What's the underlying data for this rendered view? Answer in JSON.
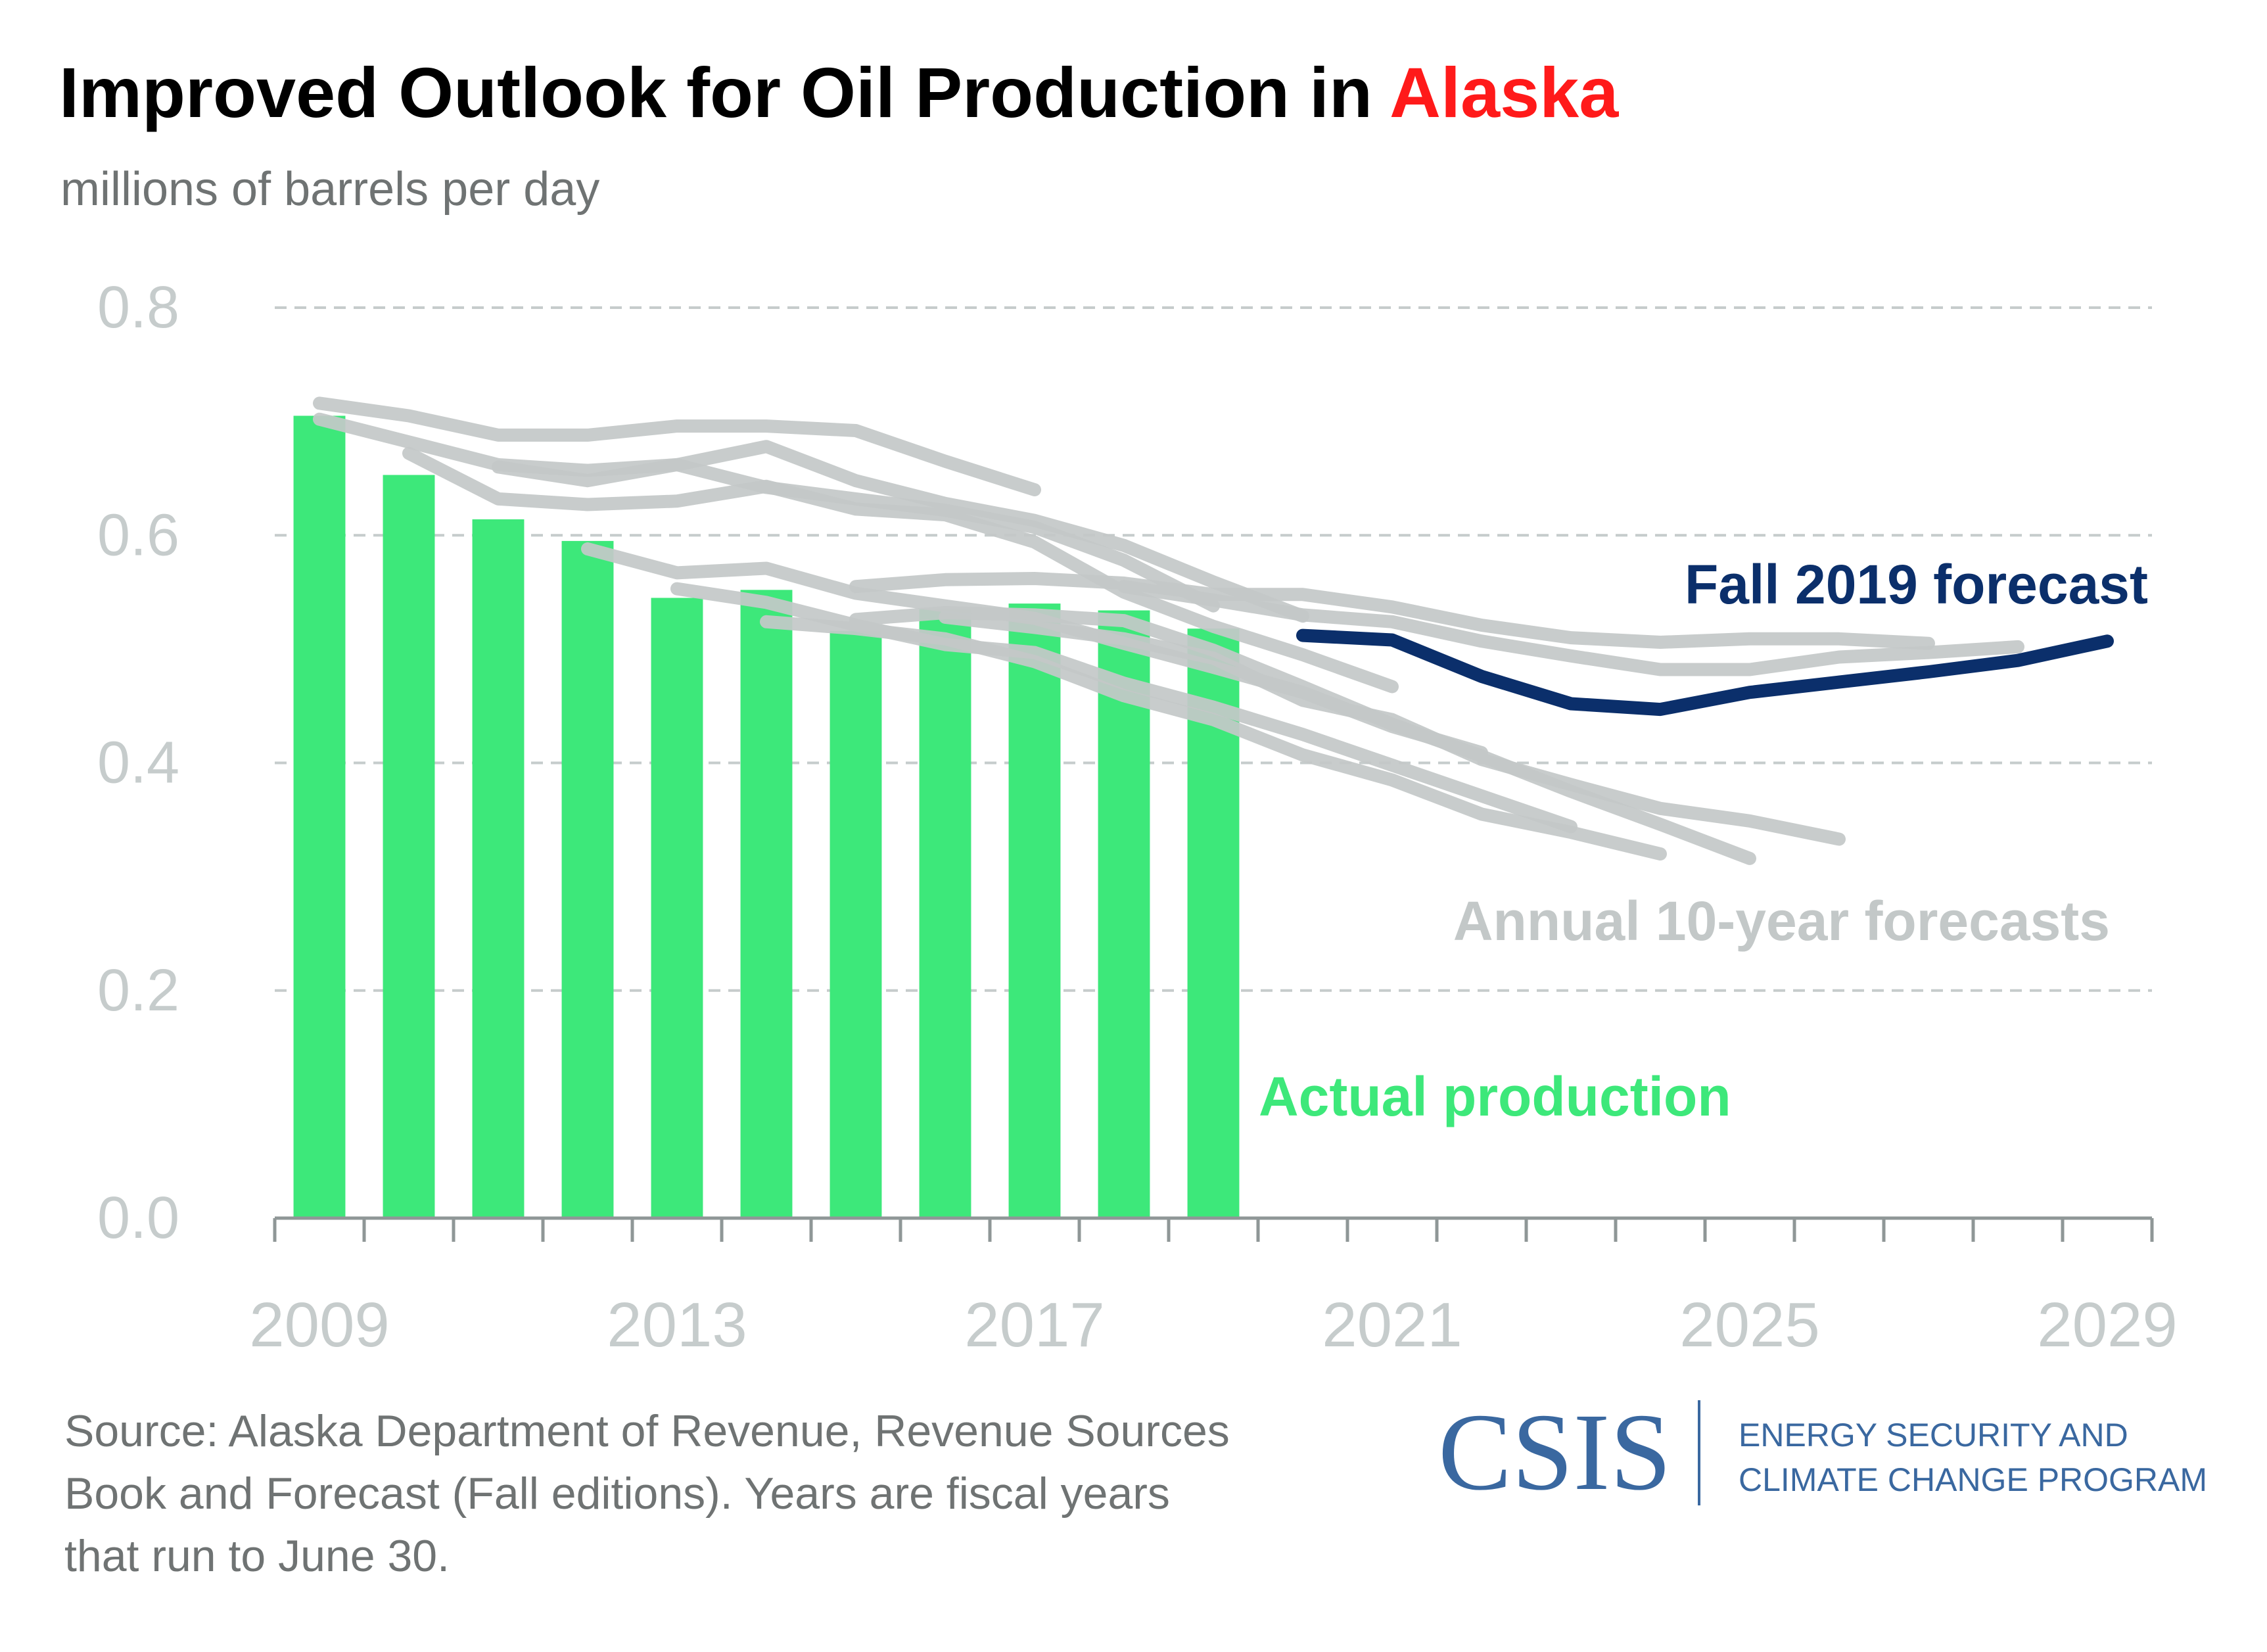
{
  "title": {
    "main": "Improved Outlook for Oil Production in ",
    "highlight": "Alaska"
  },
  "subtitle": "millions of barrels per day",
  "source": {
    "lines": [
      "Source: Alaska Department of Revenue, Revenue Sources",
      "Book and Forecast (Fall editions). Years are fiscal years",
      "that run to June 30."
    ]
  },
  "logo": {
    "name": "CSIS",
    "program_line1": "ENERGY SECURITY AND",
    "program_line2": "CLIMATE CHANGE PROGRAM"
  },
  "colors": {
    "bars": "#3de87a",
    "forecasts": "#c3c8c8",
    "fall_2019": "#0b2f6b",
    "highlight": "#ff1a1a",
    "axis_text": "#c6cccc",
    "axis_line": "#8f9797",
    "grid": "#c6cccc",
    "logo": "#3a68a0"
  },
  "chart_data": {
    "type": "bar",
    "xlim": [
      2009,
      2029
    ],
    "ylim": [
      0,
      0.8
    ],
    "xticks": [
      2009,
      2013,
      2017,
      2021,
      2025,
      2029
    ],
    "yticks": [
      0.0,
      0.2,
      0.4,
      0.6,
      0.8
    ],
    "ytick_labels": [
      "0.0",
      "0.2",
      "0.4",
      "0.6",
      "0.8"
    ],
    "grid": "horizontal dashed",
    "labels": {
      "actual": "Actual production",
      "forecasts": "Annual 10-year forecasts",
      "fall2019": "Fall 2019 forecast"
    },
    "actual_production": {
      "x": [
        2009,
        2010,
        2011,
        2012,
        2013,
        2014,
        2015,
        2016,
        2017,
        2018,
        2019
      ],
      "values": [
        0.705,
        0.653,
        0.614,
        0.595,
        0.545,
        0.552,
        0.516,
        0.535,
        0.54,
        0.534,
        0.518
      ]
    },
    "forecast_series": [
      {
        "x": [
          2009,
          2010,
          2011,
          2012,
          2013,
          2014,
          2015,
          2016,
          2017
        ],
        "values": [
          0.716,
          0.705,
          0.688,
          0.688,
          0.696,
          0.696,
          0.692,
          0.665,
          0.64
        ]
      },
      {
        "x": [
          2009,
          2010,
          2011,
          2012,
          2013,
          2014,
          2015,
          2016,
          2017,
          2018,
          2019
        ],
        "values": [
          0.702,
          0.682,
          0.662,
          0.657,
          0.662,
          0.642,
          0.632,
          0.622,
          0.607,
          0.578,
          0.538
        ]
      },
      {
        "x": [
          2010,
          2011,
          2012,
          2013,
          2014,
          2015,
          2016,
          2017,
          2018,
          2019,
          2020,
          2021
        ],
        "values": [
          0.672,
          0.632,
          0.627,
          0.63,
          0.643,
          0.623,
          0.618,
          0.594,
          0.55,
          0.52,
          0.495,
          0.467
        ]
      },
      {
        "x": [
          2011,
          2012,
          2013,
          2014,
          2015,
          2016,
          2017,
          2018,
          2019,
          2020
        ],
        "values": [
          0.66,
          0.648,
          0.662,
          0.678,
          0.648,
          0.628,
          0.613,
          0.591,
          0.559,
          0.529
        ]
      },
      {
        "x": [
          2012,
          2013,
          2014,
          2015,
          2016,
          2017,
          2018,
          2019,
          2020,
          2021,
          2022
        ],
        "values": [
          0.588,
          0.567,
          0.571,
          0.549,
          0.538,
          0.527,
          0.505,
          0.484,
          0.462,
          0.432,
          0.409
        ]
      },
      {
        "x": [
          2013,
          2014,
          2015,
          2016,
          2017,
          2018,
          2019,
          2020,
          2021,
          2022,
          2023
        ],
        "values": [
          0.553,
          0.541,
          0.521,
          0.504,
          0.497,
          0.47,
          0.449,
          0.425,
          0.398,
          0.371,
          0.344
        ]
      },
      {
        "x": [
          2014,
          2015,
          2016,
          2017,
          2018,
          2019,
          2020,
          2021,
          2022,
          2023,
          2024
        ],
        "values": [
          0.524,
          0.518,
          0.509,
          0.489,
          0.459,
          0.438,
          0.407,
          0.385,
          0.355,
          0.339,
          0.32
        ]
      },
      {
        "x": [
          2015,
          2016,
          2017,
          2018,
          2019,
          2020,
          2021,
          2022,
          2023,
          2024,
          2025
        ],
        "values": [
          0.526,
          0.532,
          0.53,
          0.525,
          0.499,
          0.467,
          0.434,
          0.406,
          0.375,
          0.346,
          0.316
        ]
      },
      {
        "x": [
          2016,
          2017,
          2018,
          2019,
          2020,
          2021,
          2022,
          2023,
          2024,
          2025,
          2026
        ],
        "values": [
          0.528,
          0.519,
          0.509,
          0.492,
          0.455,
          0.438,
          0.403,
          0.381,
          0.36,
          0.349,
          0.333
        ]
      },
      {
        "x": [
          2015,
          2016,
          2017,
          2018,
          2019,
          2020,
          2021,
          2022,
          2023,
          2024,
          2025,
          2026,
          2027
        ],
        "values": [
          0.555,
          0.561,
          0.562,
          0.558,
          0.548,
          0.548,
          0.537,
          0.521,
          0.51,
          0.506,
          0.509,
          0.509,
          0.505
        ]
      },
      {
        "x": [
          2018,
          2019,
          2020,
          2021,
          2022,
          2023,
          2024,
          2025,
          2026,
          2027,
          2028
        ],
        "values": [
          0.555,
          0.543,
          0.53,
          0.524,
          0.507,
          0.494,
          0.482,
          0.482,
          0.493,
          0.497,
          0.502
        ]
      }
    ],
    "fall_2019_forecast": {
      "x": [
        2020,
        2021,
        2022,
        2023,
        2024,
        2025,
        2026,
        2027,
        2028,
        2029
      ],
      "values": [
        0.512,
        0.508,
        0.476,
        0.452,
        0.447,
        0.462,
        0.471,
        0.48,
        0.49,
        0.507
      ]
    }
  }
}
